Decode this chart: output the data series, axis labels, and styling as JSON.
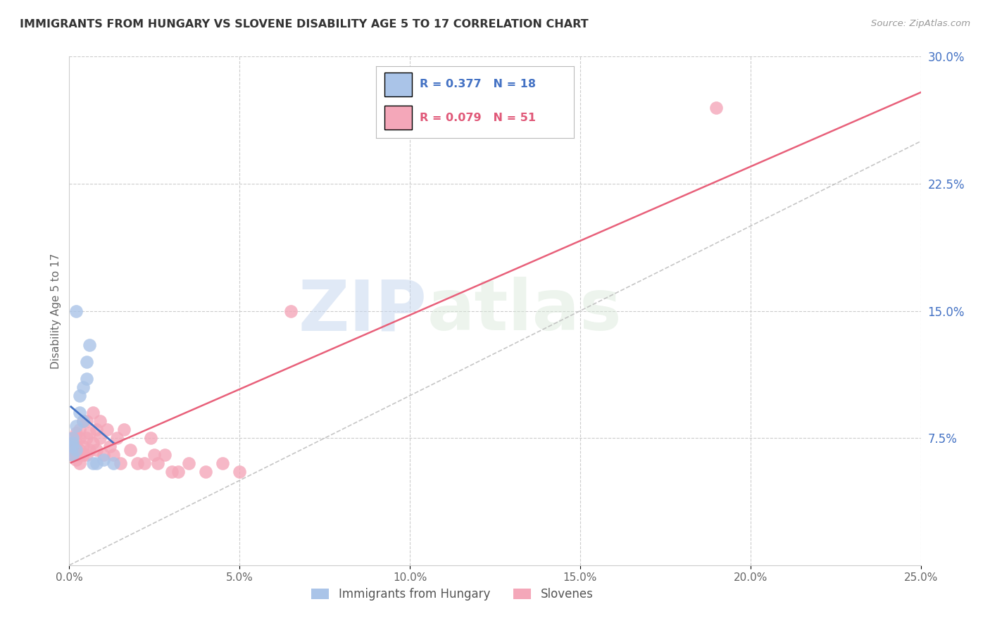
{
  "title": "IMMIGRANTS FROM HUNGARY VS SLOVENE DISABILITY AGE 5 TO 17 CORRELATION CHART",
  "source": "Source: ZipAtlas.com",
  "ylabel": "Disability Age 5 to 17",
  "xlim": [
    0.0,
    0.25
  ],
  "ylim": [
    0.0,
    0.3
  ],
  "xticks": [
    0.0,
    0.05,
    0.1,
    0.15,
    0.2,
    0.25
  ],
  "xticklabels": [
    "0.0%",
    "5.0%",
    "10.0%",
    "15.0%",
    "20.0%",
    "25.0%"
  ],
  "yticks_right": [
    0.075,
    0.15,
    0.225,
    0.3
  ],
  "yticklabels_right": [
    "7.5%",
    "15.0%",
    "22.5%",
    "30.0%"
  ],
  "grid_color": "#cccccc",
  "background_color": "#ffffff",
  "hungary_color": "#aac4e8",
  "slovene_color": "#f4a7b9",
  "hungary_line_color": "#4472c4",
  "slovene_line_color": "#e8607a",
  "diagonal_color": "#c0c0c0",
  "legend_hungary_R": "0.377",
  "legend_hungary_N": "18",
  "legend_slovene_R": "0.079",
  "legend_slovene_N": "51",
  "watermark_zip": "ZIP",
  "watermark_atlas": "atlas",
  "hungary_x": [
    0.001,
    0.001,
    0.001,
    0.001,
    0.002,
    0.002,
    0.002,
    0.003,
    0.003,
    0.004,
    0.004,
    0.005,
    0.005,
    0.006,
    0.007,
    0.008,
    0.01,
    0.013
  ],
  "hungary_y": [
    0.065,
    0.07,
    0.072,
    0.075,
    0.068,
    0.082,
    0.15,
    0.09,
    0.1,
    0.085,
    0.105,
    0.11,
    0.12,
    0.13,
    0.06,
    0.06,
    0.062,
    0.06
  ],
  "slovene_x": [
    0.001,
    0.001,
    0.001,
    0.001,
    0.001,
    0.002,
    0.002,
    0.002,
    0.002,
    0.002,
    0.003,
    0.003,
    0.003,
    0.003,
    0.003,
    0.004,
    0.004,
    0.004,
    0.005,
    0.005,
    0.005,
    0.006,
    0.006,
    0.007,
    0.007,
    0.008,
    0.008,
    0.009,
    0.009,
    0.01,
    0.011,
    0.012,
    0.013,
    0.014,
    0.015,
    0.016,
    0.018,
    0.02,
    0.022,
    0.024,
    0.025,
    0.026,
    0.028,
    0.03,
    0.032,
    0.035,
    0.04,
    0.045,
    0.05,
    0.065,
    0.19
  ],
  "slovene_y": [
    0.065,
    0.068,
    0.07,
    0.072,
    0.075,
    0.062,
    0.065,
    0.068,
    0.072,
    0.078,
    0.06,
    0.065,
    0.068,
    0.075,
    0.08,
    0.065,
    0.07,
    0.085,
    0.065,
    0.075,
    0.085,
    0.068,
    0.078,
    0.072,
    0.09,
    0.068,
    0.08,
    0.075,
    0.085,
    0.065,
    0.08,
    0.07,
    0.065,
    0.075,
    0.06,
    0.08,
    0.068,
    0.06,
    0.06,
    0.075,
    0.065,
    0.06,
    0.065,
    0.055,
    0.055,
    0.06,
    0.055,
    0.06,
    0.055,
    0.15,
    0.27
  ]
}
